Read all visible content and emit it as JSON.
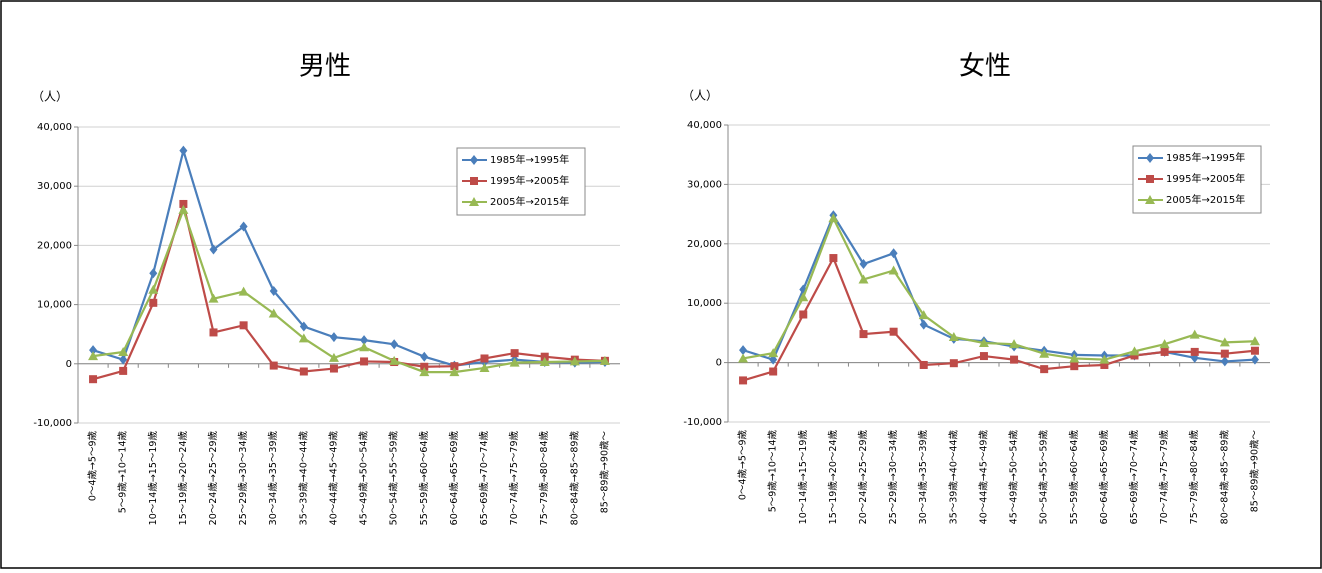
{
  "chart_data": [
    {
      "type": "line",
      "title": "男性",
      "y_label": "（人）",
      "categories": [
        "0～4歳→5～9歳",
        "5～9歳→10～14歳",
        "10～14歳→15～19歳",
        "15～19歳→20～24歳",
        "20～24歳→25～29歳",
        "25～29歳→30～34歳",
        "30～34歳→35～39歳",
        "35～39歳→40～44歳",
        "40～44歳→45～49歳",
        "45～49歳→50～54歳",
        "50～54歳→55～59歳",
        "55～59歳→60～64歳",
        "60～64歳→65～69歳",
        "65～69歳→70～74歳",
        "70～74歳→75～79歳",
        "75～79歳→80～84歳",
        "80～84歳→85～89歳",
        "85～89歳→90歳～"
      ],
      "series": [
        {
          "name": "1985年→1995年",
          "color": "#4a7ebb",
          "marker": "diamond",
          "values": [
            2300,
            700,
            15300,
            36000,
            19300,
            23200,
            12300,
            6300,
            4500,
            4000,
            3300,
            1200,
            -300,
            300,
            700,
            300,
            200,
            300
          ]
        },
        {
          "name": "1995年→2005年",
          "color": "#be4b48",
          "marker": "square",
          "values": [
            -2600,
            -1200,
            10300,
            27000,
            5300,
            6500,
            -300,
            -1300,
            -800,
            400,
            300,
            -500,
            -400,
            900,
            1800,
            1200,
            700,
            500
          ]
        },
        {
          "name": "2005年→2015年",
          "color": "#98b954",
          "marker": "triangle",
          "values": [
            1300,
            2000,
            12500,
            26000,
            11000,
            12200,
            8500,
            4300,
            1000,
            2800,
            500,
            -1400,
            -1400,
            -700,
            200,
            300,
            400,
            500
          ]
        }
      ],
      "ylim": [
        -10000,
        40000
      ],
      "yticks": [
        {
          "value": -10000,
          "label": "-10,000"
        },
        0,
        {
          "value": 10000,
          "label": "10,000"
        },
        {
          "value": 20000,
          "label": "20,000"
        },
        {
          "value": 30000,
          "label": "30,000"
        },
        {
          "value": 40000,
          "label": "40,000"
        }
      ],
      "grid": true,
      "legend": "upper right"
    },
    {
      "type": "line",
      "title": "女性",
      "y_label": "（人）",
      "categories": [
        "0～4歳→5～9歳",
        "5～9歳→10～14歳",
        "10～14歳→15～19歳",
        "15～19歳→20～24歳",
        "20～24歳→25～29歳",
        "25～29歳→30～34歳",
        "30～34歳→35～39歳",
        "35～39歳→40～44歳",
        "40～44歳→45～49歳",
        "45～49歳→50～54歳",
        "50～54歳→55～59歳",
        "55～59歳→60～64歳",
        "60～64歳→65～69歳",
        "65～69歳→70～74歳",
        "70～74歳→75～79歳",
        "75～79歳→80～84歳",
        "80～84歳→85～89歳",
        "85～89歳→90歳～"
      ],
      "series": [
        {
          "name": "1985年→1995年",
          "color": "#4a7ebb",
          "marker": "diamond",
          "values": [
            2100,
            500,
            12300,
            24800,
            16600,
            18400,
            6400,
            4000,
            3600,
            2700,
            2000,
            1300,
            1200,
            1200,
            1800,
            800,
            200,
            500
          ]
        },
        {
          "name": "1995年→2005年",
          "color": "#be4b48",
          "marker": "square",
          "values": [
            -3000,
            -1500,
            8100,
            17600,
            4800,
            5200,
            -400,
            -100,
            1100,
            500,
            -1100,
            -600,
            -400,
            1200,
            1800,
            1800,
            1500,
            2000
          ]
        },
        {
          "name": "2005年→2015年",
          "color": "#98b954",
          "marker": "triangle",
          "values": [
            700,
            1600,
            11000,
            24300,
            14000,
            15500,
            8000,
            4300,
            3300,
            3100,
            1500,
            700,
            500,
            1900,
            3100,
            4700,
            3400,
            3600
          ]
        }
      ],
      "ylim": [
        -10000,
        40000
      ],
      "yticks": [
        {
          "value": -10000,
          "label": "-10,000"
        },
        0,
        {
          "value": 10000,
          "label": "10,000"
        },
        {
          "value": 20000,
          "label": "20,000"
        },
        {
          "value": 30000,
          "label": "30,000"
        },
        {
          "value": 40000,
          "label": "40,000"
        }
      ],
      "grid": true,
      "legend": "upper right"
    }
  ]
}
